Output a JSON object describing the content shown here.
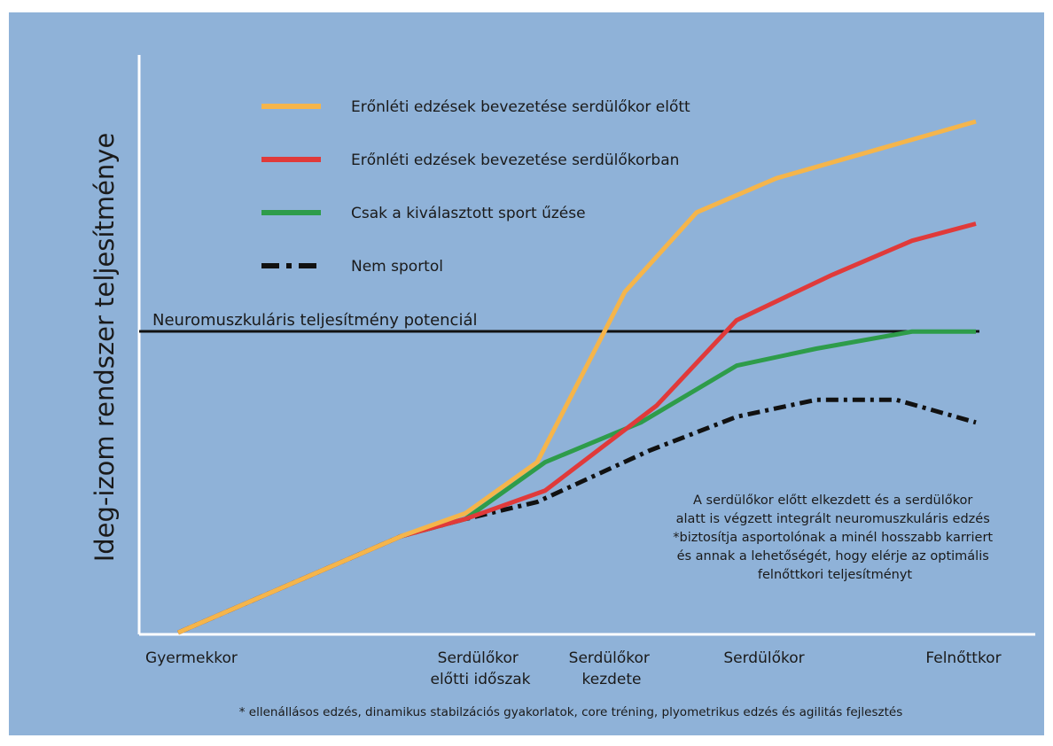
{
  "chart_data": {
    "type": "line",
    "ylabel": "Ideg-izom rendszer teljesítménye",
    "x_tick_labels": [
      {
        "lines": [
          "Gyermekkor"
        ]
      },
      {
        "lines": [
          "Serdülőkor",
          "előtti időszak"
        ]
      },
      {
        "lines": [
          "Serdülőkor",
          "kezdete"
        ]
      },
      {
        "lines": [
          "Serdülőkor"
        ]
      },
      {
        "lines": [
          "Felnőttkor"
        ]
      }
    ],
    "reference_line": {
      "label": "Neuromuszkuláris teljesítmény potenciál",
      "y": 0.52
    },
    "series": [
      {
        "name": "Erőnléti edzések bevezetése serdülőkor előtt",
        "color": "#f5b54b",
        "dash": "solid",
        "points": [
          [
            0,
            0
          ],
          [
            0.28,
            0.17
          ],
          [
            0.36,
            0.21
          ],
          [
            0.45,
            0.3
          ],
          [
            0.56,
            0.6
          ],
          [
            0.65,
            0.74
          ],
          [
            0.75,
            0.8
          ],
          [
            1.0,
            0.9
          ]
        ]
      },
      {
        "name": "Erőnléti edzések bevezetése serdülőkorban",
        "color": "#e03a3a",
        "dash": "solid",
        "points": [
          [
            0,
            0
          ],
          [
            0.28,
            0.17
          ],
          [
            0.36,
            0.2
          ],
          [
            0.46,
            0.25
          ],
          [
            0.6,
            0.4
          ],
          [
            0.7,
            0.55
          ],
          [
            0.82,
            0.63
          ],
          [
            0.92,
            0.69
          ],
          [
            1.0,
            0.72
          ]
        ]
      },
      {
        "name": "Csak a kiválasztott sport űzése",
        "color": "#2e9c4a",
        "dash": "solid",
        "points": [
          [
            0,
            0
          ],
          [
            0.28,
            0.17
          ],
          [
            0.36,
            0.2
          ],
          [
            0.46,
            0.3
          ],
          [
            0.58,
            0.37
          ],
          [
            0.7,
            0.47
          ],
          [
            0.8,
            0.5
          ],
          [
            0.92,
            0.53
          ],
          [
            1.0,
            0.53
          ]
        ]
      },
      {
        "name": "Nem sportol",
        "color": "#111111",
        "dash": "dashdot",
        "points": [
          [
            0,
            0
          ],
          [
            0.28,
            0.17
          ],
          [
            0.36,
            0.2
          ],
          [
            0.45,
            0.23
          ],
          [
            0.59,
            0.32
          ],
          [
            0.7,
            0.38
          ],
          [
            0.8,
            0.41
          ],
          [
            0.9,
            0.41
          ],
          [
            1.0,
            0.37
          ]
        ]
      }
    ],
    "annotation_lines": [
      "A serdülőkor előtt elkezdett és a serdülőkor",
      "alatt is végzett integrált neuromuszkuláris edzés",
      "*biztosítja asportolónak a minél hosszabb karriert",
      "és annak a lehetőségét, hogy elérje az optimális",
      "felnőttkori teljesítményt"
    ],
    "footnote": "* ellenállásos edzés, dinamikus stabilzációs gyakorlatok, core tréning, plyometrikus edzés és agilitás fejlesztés",
    "colors": {
      "background": "#8fb2d8",
      "axis": "#ffffff",
      "reference": "#111111"
    },
    "grid": false,
    "legend_position": "top-left"
  }
}
